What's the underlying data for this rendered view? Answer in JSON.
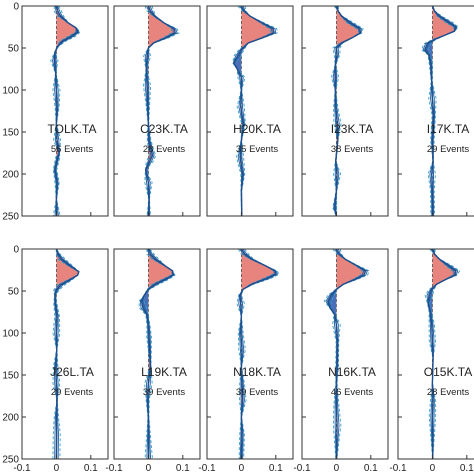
{
  "chart_data": {
    "type": "line",
    "ylim": [
      0,
      250
    ],
    "xlim": [
      -0.1,
      0.15
    ],
    "y_ticks": [
      0,
      50,
      100,
      150,
      200,
      250
    ],
    "x_ticks": [
      -0.1,
      0,
      0.1
    ],
    "x_tick_labels": [
      "-0.1",
      "0",
      "0.1"
    ],
    "y_tick_labels": [
      "0",
      "50",
      "100",
      "150",
      "200",
      "250"
    ],
    "grid": false,
    "positive_color": "#e8847e",
    "negative_color": "#4a6fb8",
    "line_color": "#1f4e8c",
    "dash_color": "#3aa0c8",
    "panels": [
      {
        "row": 0,
        "col": 0,
        "station": "TOLK.TA",
        "events": "56 Events",
        "profile": [
          [
            0,
            0
          ],
          [
            6,
            0.004
          ],
          [
            12,
            0.012
          ],
          [
            20,
            0.034
          ],
          [
            26,
            0.057
          ],
          [
            31,
            0.062
          ],
          [
            36,
            0.045
          ],
          [
            42,
            0.018
          ],
          [
            48,
            0.004
          ],
          [
            55,
            -0.004
          ],
          [
            65,
            -0.006
          ],
          [
            80,
            -0.002
          ],
          [
            100,
            0.0
          ],
          [
            120,
            0.002
          ],
          [
            140,
            0.0
          ],
          [
            160,
            0.002
          ],
          [
            175,
            0.008
          ],
          [
            180,
            0.004
          ],
          [
            195,
            -0.004
          ],
          [
            210,
            0.002
          ],
          [
            230,
            0.0
          ],
          [
            250,
            0.001
          ]
        ]
      },
      {
        "row": 0,
        "col": 1,
        "station": "C23K.TA",
        "events": "28 Events",
        "profile": [
          [
            0,
            0
          ],
          [
            6,
            0.006
          ],
          [
            12,
            0.018
          ],
          [
            20,
            0.045
          ],
          [
            27,
            0.075
          ],
          [
            32,
            0.078
          ],
          [
            38,
            0.05
          ],
          [
            44,
            0.015
          ],
          [
            50,
            0.0
          ],
          [
            60,
            -0.004
          ],
          [
            75,
            -0.006
          ],
          [
            95,
            -0.004
          ],
          [
            115,
            -0.002
          ],
          [
            140,
            0.0
          ],
          [
            160,
            0.002
          ],
          [
            178,
            0.012
          ],
          [
            185,
            0.004
          ],
          [
            195,
            -0.008
          ],
          [
            210,
            0.0
          ],
          [
            230,
            0.002
          ],
          [
            250,
            0.001
          ]
        ]
      },
      {
        "row": 0,
        "col": 2,
        "station": "H20K.TA",
        "events": "35 Events",
        "profile": [
          [
            0,
            0
          ],
          [
            6,
            0.008
          ],
          [
            12,
            0.025
          ],
          [
            20,
            0.06
          ],
          [
            27,
            0.092
          ],
          [
            32,
            0.095
          ],
          [
            38,
            0.06
          ],
          [
            44,
            0.02
          ],
          [
            52,
            0.0
          ],
          [
            60,
            -0.012
          ],
          [
            68,
            -0.022
          ],
          [
            75,
            -0.012
          ],
          [
            85,
            0.0
          ],
          [
            100,
            0.0
          ],
          [
            120,
            -0.002
          ],
          [
            140,
            0.006
          ],
          [
            160,
            0.0
          ],
          [
            180,
            -0.004
          ],
          [
            200,
            0.004
          ],
          [
            220,
            0.0
          ],
          [
            250,
            0.001
          ]
        ]
      },
      {
        "row": 0,
        "col": 3,
        "station": "I23K.TA",
        "events": "38 Events",
        "profile": [
          [
            0,
            0
          ],
          [
            6,
            0.005
          ],
          [
            12,
            0.015
          ],
          [
            20,
            0.04
          ],
          [
            27,
            0.068
          ],
          [
            32,
            0.07
          ],
          [
            38,
            0.045
          ],
          [
            44,
            0.015
          ],
          [
            50,
            0.0
          ],
          [
            58,
            0.002
          ],
          [
            70,
            -0.003
          ],
          [
            85,
            -0.004
          ],
          [
            100,
            -0.003
          ],
          [
            120,
            -0.002
          ],
          [
            140,
            0.003
          ],
          [
            160,
            0.004
          ],
          [
            185,
            -0.002
          ],
          [
            200,
            0.002
          ],
          [
            220,
            0.0
          ],
          [
            240,
            -0.005
          ],
          [
            250,
            0.0
          ]
        ]
      },
      {
        "row": 0,
        "col": 4,
        "station": "I17K.TA",
        "events": "29 Events",
        "profile": [
          [
            0,
            0
          ],
          [
            6,
            0.006
          ],
          [
            12,
            0.02
          ],
          [
            20,
            0.05
          ],
          [
            25,
            0.068
          ],
          [
            30,
            0.064
          ],
          [
            35,
            0.035
          ],
          [
            40,
            0.005
          ],
          [
            45,
            -0.015
          ],
          [
            52,
            -0.022
          ],
          [
            58,
            -0.01
          ],
          [
            70,
            -0.004
          ],
          [
            90,
            -0.002
          ],
          [
            110,
            0.0
          ],
          [
            130,
            0.004
          ],
          [
            160,
            0.0
          ],
          [
            185,
            0.002
          ],
          [
            200,
            -0.002
          ],
          [
            220,
            0.0
          ],
          [
            250,
            0.001
          ]
        ]
      },
      {
        "row": 1,
        "col": 0,
        "station": "J26L.TA",
        "events": "29 Events",
        "profile": [
          [
            0,
            0
          ],
          [
            6,
            0.005
          ],
          [
            12,
            0.015
          ],
          [
            20,
            0.04
          ],
          [
            27,
            0.065
          ],
          [
            31,
            0.062
          ],
          [
            37,
            0.038
          ],
          [
            43,
            0.012
          ],
          [
            49,
            0.0
          ],
          [
            55,
            -0.004
          ],
          [
            65,
            -0.003
          ],
          [
            80,
            0.002
          ],
          [
            100,
            0.0
          ],
          [
            120,
            0.001
          ],
          [
            140,
            -0.002
          ],
          [
            160,
            0.0
          ],
          [
            180,
            0.002
          ],
          [
            200,
            0.0
          ],
          [
            220,
            0.001
          ],
          [
            250,
            0.0
          ]
        ]
      },
      {
        "row": 1,
        "col": 1,
        "station": "L19K.TA",
        "events": "39 Events",
        "profile": [
          [
            0,
            0
          ],
          [
            6,
            0.006
          ],
          [
            12,
            0.02
          ],
          [
            20,
            0.048
          ],
          [
            26,
            0.07
          ],
          [
            31,
            0.072
          ],
          [
            36,
            0.05
          ],
          [
            42,
            0.02
          ],
          [
            48,
            0.0
          ],
          [
            55,
            -0.012
          ],
          [
            62,
            -0.02
          ],
          [
            70,
            -0.016
          ],
          [
            78,
            -0.004
          ],
          [
            90,
            0.0
          ],
          [
            105,
            0.002
          ],
          [
            120,
            0.004
          ],
          [
            140,
            0.006
          ],
          [
            160,
            0.0
          ],
          [
            180,
            -0.002
          ],
          [
            200,
            0.0
          ],
          [
            250,
            0.001
          ]
        ]
      },
      {
        "row": 1,
        "col": 2,
        "station": "N18K.TA",
        "events": "39 Events",
        "profile": [
          [
            0,
            0
          ],
          [
            6,
            0.01
          ],
          [
            12,
            0.03
          ],
          [
            20,
            0.07
          ],
          [
            26,
            0.098
          ],
          [
            30,
            0.1
          ],
          [
            35,
            0.075
          ],
          [
            42,
            0.03
          ],
          [
            48,
            0.005
          ],
          [
            55,
            -0.004
          ],
          [
            65,
            -0.002
          ],
          [
            80,
            0.0
          ],
          [
            100,
            -0.002
          ],
          [
            120,
            0.002
          ],
          [
            140,
            0.0
          ],
          [
            160,
            0.002
          ],
          [
            180,
            0.004
          ],
          [
            200,
            0.0
          ],
          [
            220,
            0.002
          ],
          [
            250,
            0.0
          ]
        ]
      },
      {
        "row": 1,
        "col": 3,
        "station": "N16K.TA",
        "events": "46 Events",
        "profile": [
          [
            0,
            0
          ],
          [
            6,
            0.008
          ],
          [
            12,
            0.025
          ],
          [
            20,
            0.06
          ],
          [
            26,
            0.085
          ],
          [
            31,
            0.08
          ],
          [
            36,
            0.055
          ],
          [
            42,
            0.02
          ],
          [
            48,
            0.0
          ],
          [
            55,
            -0.015
          ],
          [
            62,
            -0.025
          ],
          [
            70,
            -0.018
          ],
          [
            78,
            -0.005
          ],
          [
            90,
            0.0
          ],
          [
            110,
            0.003
          ],
          [
            140,
            0.002
          ],
          [
            160,
            0.0
          ],
          [
            185,
            0.0
          ],
          [
            210,
            0.002
          ],
          [
            250,
            0.0
          ]
        ]
      },
      {
        "row": 1,
        "col": 4,
        "station": "O15K.TA",
        "events": "28 Events",
        "profile": [
          [
            0,
            0
          ],
          [
            6,
            0.006
          ],
          [
            12,
            0.02
          ],
          [
            20,
            0.048
          ],
          [
            26,
            0.068
          ],
          [
            31,
            0.066
          ],
          [
            36,
            0.04
          ],
          [
            42,
            0.012
          ],
          [
            48,
            -0.002
          ],
          [
            55,
            -0.01
          ],
          [
            65,
            -0.012
          ],
          [
            75,
            -0.006
          ],
          [
            90,
            -0.002
          ],
          [
            110,
            0.0
          ],
          [
            130,
            0.002
          ],
          [
            160,
            0.0
          ],
          [
            180,
            0.002
          ],
          [
            200,
            0.0
          ],
          [
            250,
            0.001
          ]
        ]
      }
    ]
  }
}
